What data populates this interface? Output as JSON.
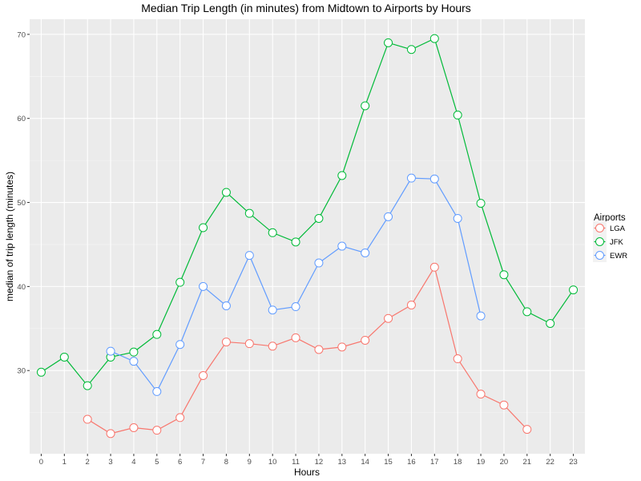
{
  "chart_data": {
    "type": "line",
    "title": "Median Trip Length (in minutes) from Midtown to Airports by Hours",
    "xlabel": "Hours",
    "ylabel": "median of trip length (minutes)",
    "xlim": [
      -0.5,
      23.5
    ],
    "ylim": [
      20.1,
      71.8
    ],
    "x_ticks": [
      0,
      1,
      2,
      3,
      4,
      5,
      6,
      7,
      8,
      9,
      10,
      11,
      12,
      13,
      14,
      15,
      16,
      17,
      18,
      19,
      20,
      21,
      22,
      23
    ],
    "y_ticks": [
      30,
      40,
      50,
      60,
      70
    ],
    "grid": true,
    "legend": {
      "title": "Airports",
      "position": "right"
    },
    "series": [
      {
        "name": "LGA",
        "color": "#F8766D",
        "x": [
          2,
          3,
          4,
          5,
          6,
          7,
          8,
          9,
          10,
          11,
          12,
          13,
          14,
          15,
          16,
          17,
          18,
          19,
          20,
          21
        ],
        "values": [
          24.2,
          22.5,
          23.2,
          22.9,
          24.4,
          29.4,
          33.4,
          33.2,
          32.9,
          33.9,
          32.5,
          32.8,
          33.6,
          36.2,
          37.8,
          42.3,
          31.4,
          27.2,
          25.9,
          23.0
        ]
      },
      {
        "name": "JFK",
        "color": "#00BA38",
        "x": [
          0,
          1,
          2,
          3,
          4,
          5,
          6,
          7,
          8,
          9,
          10,
          11,
          12,
          13,
          14,
          15,
          16,
          17,
          18,
          19,
          20,
          21,
          22,
          23
        ],
        "values": [
          29.8,
          31.6,
          28.2,
          31.6,
          32.2,
          34.3,
          40.5,
          47.0,
          51.2,
          48.7,
          46.4,
          45.3,
          48.1,
          53.2,
          61.5,
          69.0,
          68.2,
          69.5,
          60.4,
          49.9,
          41.4,
          37.0,
          35.6,
          39.6
        ]
      },
      {
        "name": "EWR",
        "color": "#619CFF",
        "x": [
          3,
          4,
          5,
          6,
          7,
          8,
          9,
          10,
          11,
          12,
          13,
          14,
          15,
          16,
          17,
          18,
          19
        ],
        "values": [
          32.3,
          31.1,
          27.5,
          33.1,
          40.0,
          37.7,
          43.7,
          37.2,
          37.6,
          42.8,
          44.8,
          44.0,
          48.3,
          52.9,
          52.8,
          48.1,
          36.5
        ]
      }
    ]
  }
}
